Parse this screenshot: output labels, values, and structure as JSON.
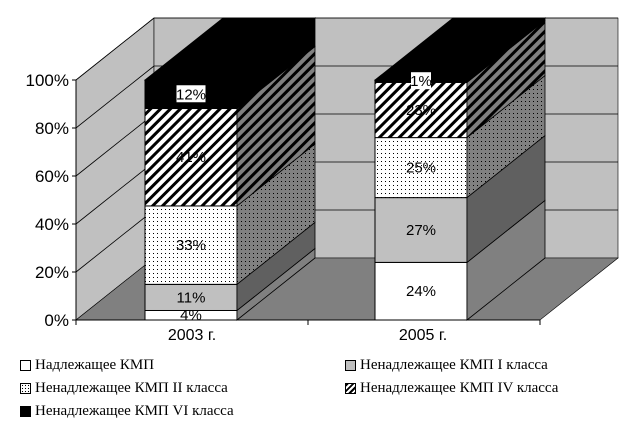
{
  "chart_data": {
    "type": "bar",
    "stacked": "percent",
    "three_d": true,
    "categories": [
      "2003 г.",
      "2005 г."
    ],
    "series": [
      {
        "name": "Надлежащее КМП",
        "values": [
          4,
          24
        ],
        "labels": [
          "4%",
          "24%"
        ],
        "fill": "white"
      },
      {
        "name": "Ненадлежащее КМП I класса",
        "values": [
          11,
          27
        ],
        "labels": [
          "11%",
          "27%"
        ],
        "fill": "gray"
      },
      {
        "name": "Ненадлежащее КМП II класса",
        "values": [
          33,
          25
        ],
        "labels": [
          "33%",
          "25%"
        ],
        "fill": "dotted"
      },
      {
        "name": "Ненадлежащее КМП IV класса",
        "values": [
          41,
          23
        ],
        "labels": [
          "41%",
          "23%"
        ],
        "fill": "diagonal-stripes"
      },
      {
        "name": "Ненадлежащее КМП VI класса",
        "values": [
          12,
          1
        ],
        "labels": [
          "12%",
          "1%"
        ],
        "fill": "black"
      }
    ],
    "yticks": [
      "0%",
      "20%",
      "40%",
      "60%",
      "80%",
      "100%"
    ],
    "ylim": [
      0,
      100
    ],
    "grid": true,
    "legend": "bottom",
    "colors": {
      "wall": "#c0c0c0",
      "floor": "#808080",
      "gray_series": "#c0c0c0"
    }
  }
}
